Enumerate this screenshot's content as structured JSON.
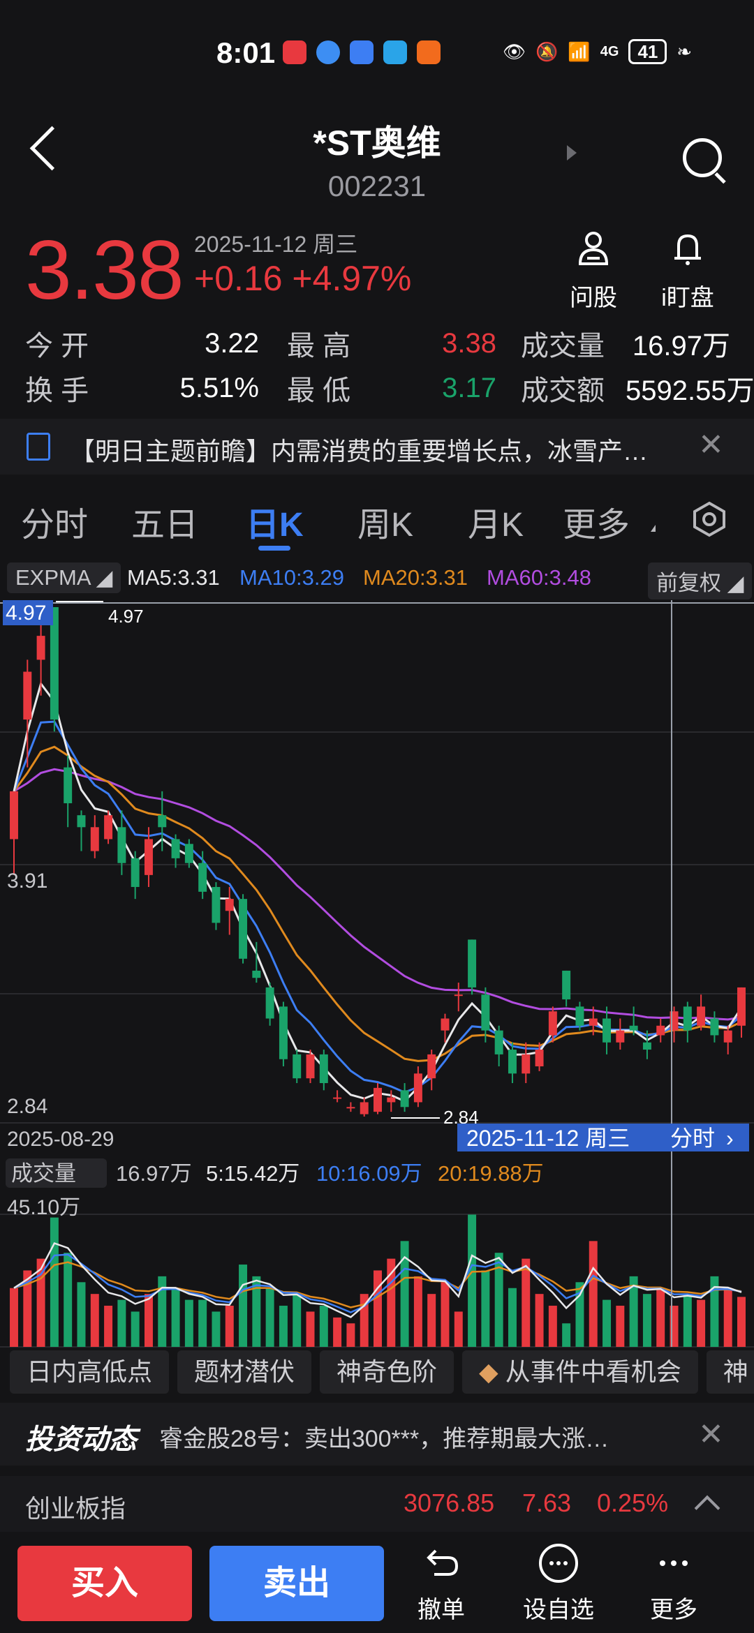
{
  "status": {
    "time": "8:01",
    "battery": "41",
    "network": "4G"
  },
  "header": {
    "title": "*ST奥维",
    "code": "002231"
  },
  "quote": {
    "price": "3.38",
    "date": "2025-11-12 周三",
    "change": "+0.16 +4.97%",
    "ask_label": "问股",
    "watch_label": "i盯盘"
  },
  "stats": {
    "open_label": "今  开",
    "open": "3.22",
    "high_label": "最  高",
    "high": "3.38",
    "volume_label": "成交量",
    "volume": "16.97万",
    "turnover_label": "换  手",
    "turnover": "5.51%",
    "low_label": "最  低",
    "low": "3.17",
    "amount_label": "成交额",
    "amount": "5592.55万"
  },
  "news": {
    "text": "【明日主题前瞻】内需消费的重要增长点，冰雪产…"
  },
  "tabs": [
    "分时",
    "五日",
    "日K",
    "周K",
    "月K",
    "更多"
  ],
  "indicator": {
    "name": "EXPMA",
    "ma5": "MA5:3.31",
    "ma10": "MA10:3.29",
    "ma20": "MA20:3.31",
    "ma60": "MA60:3.48",
    "adjust": "前复权"
  },
  "chart_labels": {
    "max_tag": "4.97",
    "max_line": "4.97",
    "mid": "3.91",
    "min": "2.84",
    "min_mark": "2.84",
    "start_date": "2025-08-29",
    "cursor_date": "2025-11-12 周三",
    "cursor_btn": "分时"
  },
  "volume": {
    "name": "成交量",
    "v": "16.97万",
    "ma5": "5:15.42万",
    "ma10": "10:16.09万",
    "ma20": "20:19.88万",
    "top": "45.10万"
  },
  "colors": {
    "up": "#e8393f",
    "down": "#1aa36a",
    "ma5": "#e8e8ea",
    "ma10": "#3d7ef3",
    "ma20": "#e08a1e",
    "ma60": "#b24de0",
    "accent": "#3d7ef3"
  },
  "chart_data": {
    "type": "candlestick",
    "candles": [
      {
        "o": 4.0,
        "h": 4.2,
        "l": 3.85,
        "c": 4.2
      },
      {
        "o": 4.5,
        "h": 4.75,
        "l": 4.3,
        "c": 4.7
      },
      {
        "o": 4.75,
        "h": 4.95,
        "l": 4.6,
        "c": 4.85
      },
      {
        "o": 4.97,
        "h": 4.97,
        "l": 4.45,
        "c": 4.5
      },
      {
        "o": 4.3,
        "h": 4.35,
        "l": 4.05,
        "c": 4.15
      },
      {
        "o": 4.1,
        "h": 4.12,
        "l": 3.95,
        "c": 4.05
      },
      {
        "o": 3.95,
        "h": 4.1,
        "l": 3.92,
        "c": 4.05
      },
      {
        "o": 4.0,
        "h": 4.12,
        "l": 3.98,
        "c": 4.1
      },
      {
        "o": 4.05,
        "h": 4.12,
        "l": 3.85,
        "c": 3.9
      },
      {
        "o": 3.92,
        "h": 3.95,
        "l": 3.75,
        "c": 3.8
      },
      {
        "o": 3.85,
        "h": 4.05,
        "l": 3.8,
        "c": 4.0
      },
      {
        "o": 4.1,
        "h": 4.2,
        "l": 3.95,
        "c": 4.05
      },
      {
        "o": 4.0,
        "h": 4.02,
        "l": 3.88,
        "c": 3.92
      },
      {
        "o": 3.98,
        "h": 4.0,
        "l": 3.88,
        "c": 3.9
      },
      {
        "o": 3.9,
        "h": 3.95,
        "l": 3.75,
        "c": 3.78
      },
      {
        "o": 3.8,
        "h": 3.82,
        "l": 3.62,
        "c": 3.65
      },
      {
        "o": 3.7,
        "h": 3.8,
        "l": 3.6,
        "c": 3.75
      },
      {
        "o": 3.75,
        "h": 3.77,
        "l": 3.48,
        "c": 3.5
      },
      {
        "o": 3.45,
        "h": 3.57,
        "l": 3.4,
        "c": 3.42
      },
      {
        "o": 3.38,
        "h": 3.4,
        "l": 3.22,
        "c": 3.25
      },
      {
        "o": 3.3,
        "h": 3.32,
        "l": 3.05,
        "c": 3.08
      },
      {
        "o": 3.1,
        "h": 3.12,
        "l": 2.98,
        "c": 3.0
      },
      {
        "o": 3.0,
        "h": 3.12,
        "l": 2.98,
        "c": 3.1
      },
      {
        "o": 3.1,
        "h": 3.12,
        "l": 2.95,
        "c": 2.98
      },
      {
        "o": 2.92,
        "h": 2.95,
        "l": 2.9,
        "c": 2.92
      },
      {
        "o": 2.88,
        "h": 2.9,
        "l": 2.86,
        "c": 2.88
      },
      {
        "o": 2.85,
        "h": 2.92,
        "l": 2.84,
        "c": 2.9
      },
      {
        "o": 2.86,
        "h": 2.98,
        "l": 2.85,
        "c": 2.96
      },
      {
        "o": 2.9,
        "h": 2.95,
        "l": 2.86,
        "c": 2.92
      },
      {
        "o": 2.95,
        "h": 2.98,
        "l": 2.86,
        "c": 2.88
      },
      {
        "o": 2.9,
        "h": 3.05,
        "l": 2.88,
        "c": 3.02
      },
      {
        "o": 3.0,
        "h": 3.12,
        "l": 2.95,
        "c": 3.1
      },
      {
        "o": 3.2,
        "h": 3.27,
        "l": 3.15,
        "c": 3.25
      },
      {
        "o": 3.35,
        "h": 3.4,
        "l": 3.28,
        "c": 3.35
      },
      {
        "o": 3.58,
        "h": 3.58,
        "l": 3.35,
        "c": 3.38
      },
      {
        "o": 3.35,
        "h": 3.38,
        "l": 3.15,
        "c": 3.2
      },
      {
        "o": 3.2,
        "h": 3.22,
        "l": 3.05,
        "c": 3.1
      },
      {
        "o": 3.12,
        "h": 3.15,
        "l": 2.98,
        "c": 3.02
      },
      {
        "o": 3.02,
        "h": 3.15,
        "l": 2.98,
        "c": 3.1
      },
      {
        "o": 3.05,
        "h": 3.15,
        "l": 3.03,
        "c": 3.12
      },
      {
        "o": 3.18,
        "h": 3.3,
        "l": 3.15,
        "c": 3.28
      },
      {
        "o": 3.45,
        "h": 3.45,
        "l": 3.3,
        "c": 3.33
      },
      {
        "o": 3.3,
        "h": 3.32,
        "l": 3.2,
        "c": 3.22
      },
      {
        "o": 3.22,
        "h": 3.3,
        "l": 3.18,
        "c": 3.25
      },
      {
        "o": 3.25,
        "h": 3.3,
        "l": 3.1,
        "c": 3.15
      },
      {
        "o": 3.15,
        "h": 3.25,
        "l": 3.12,
        "c": 3.2
      },
      {
        "o": 3.22,
        "h": 3.3,
        "l": 3.18,
        "c": 3.2
      },
      {
        "o": 3.15,
        "h": 3.2,
        "l": 3.08,
        "c": 3.12
      },
      {
        "o": 3.18,
        "h": 3.25,
        "l": 3.15,
        "c": 3.22
      },
      {
        "o": 3.2,
        "h": 3.3,
        "l": 3.15,
        "c": 3.28
      },
      {
        "o": 3.3,
        "h": 3.32,
        "l": 3.15,
        "c": 3.2
      },
      {
        "o": 3.22,
        "h": 3.35,
        "l": 3.2,
        "c": 3.3
      },
      {
        "o": 3.25,
        "h": 3.28,
        "l": 3.15,
        "c": 3.18
      },
      {
        "o": 3.15,
        "h": 3.22,
        "l": 3.1,
        "c": 3.2
      },
      {
        "o": 3.22,
        "h": 3.38,
        "l": 3.17,
        "c": 3.38
      }
    ],
    "volumes": [
      20,
      26,
      30,
      44,
      32,
      22,
      18,
      14,
      16,
      12,
      18,
      24,
      20,
      16,
      16,
      12,
      14,
      28,
      24,
      20,
      14,
      18,
      12,
      14,
      10,
      8,
      18,
      26,
      30,
      36,
      24,
      18,
      22,
      12,
      45,
      26,
      32,
      20,
      30,
      18,
      14,
      8,
      22,
      36,
      16,
      14,
      24,
      18,
      20,
      14,
      18,
      16,
      24,
      20,
      17
    ],
    "ylim": [
      2.84,
      4.97
    ],
    "vol_top": 45.1
  },
  "quick_buttons": [
    "日内高低点",
    "题材潜伏",
    "神奇色阶",
    "从事件中看机会",
    "神"
  ],
  "invest": {
    "brand": "投资动态",
    "text": "睿金股28号：卖出300***，推荐期最大涨…"
  },
  "index_row": {
    "name": "创业板指",
    "value": "3076.85",
    "change": "7.63",
    "pct": "0.25%"
  },
  "actions": {
    "buy": "买入",
    "sell": "卖出",
    "cancel": "撤单",
    "watch": "设自选",
    "more": "更多"
  }
}
